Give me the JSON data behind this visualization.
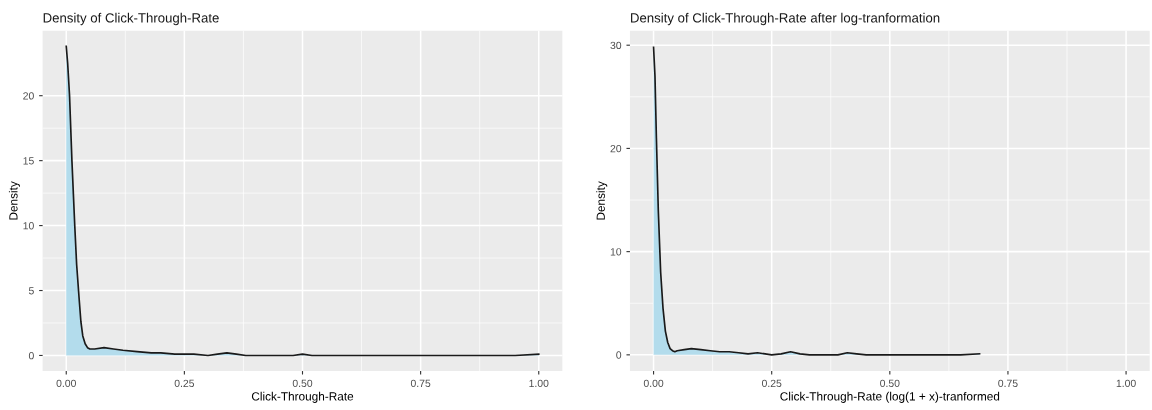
{
  "chart_data": [
    {
      "type": "area",
      "title": "Density of Click-Through-Rate",
      "xlabel": "Click-Through-Rate",
      "ylabel": "Density",
      "xlim": [
        -0.05,
        1.05
      ],
      "ylim": [
        -1.2,
        25
      ],
      "xticks": [
        {
          "value": 0,
          "label": "0.00"
        },
        {
          "value": 0.25,
          "label": "0.25"
        },
        {
          "value": 0.5,
          "label": "0.50"
        },
        {
          "value": 0.75,
          "label": "0.75"
        },
        {
          "value": 1,
          "label": "1.00"
        }
      ],
      "yticks": [
        0,
        5,
        10,
        15,
        20
      ],
      "grid": true,
      "legend": false,
      "series": [
        {
          "color": "#b3dcec",
          "x": [
            0,
            0.003,
            0.007,
            0.012,
            0.018,
            0.022,
            0.027,
            0.031,
            0.035,
            0.04,
            0.045,
            0.05,
            0.06,
            0.08,
            0.1,
            0.12,
            0.15,
            0.18,
            0.2,
            0.23,
            0.25,
            0.27,
            0.3,
            0.32,
            0.34,
            0.36,
            0.38,
            0.42,
            0.46,
            0.48,
            0.5,
            0.52,
            0.55,
            0.6,
            0.7,
            0.8,
            0.9,
            0.95,
            1.0
          ],
          "values": [
            23.8,
            22.5,
            20,
            15,
            10,
            7,
            4.5,
            2.6,
            1.5,
            0.9,
            0.6,
            0.5,
            0.5,
            0.6,
            0.5,
            0.4,
            0.3,
            0.2,
            0.2,
            0.1,
            0.1,
            0.1,
            0.0,
            0.1,
            0.2,
            0.1,
            0.0,
            0.0,
            0.0,
            0.0,
            0.1,
            0.0,
            0.0,
            0.0,
            0.0,
            0.0,
            0.0,
            0.0,
            0.1
          ]
        }
      ]
    },
    {
      "type": "area",
      "title": "Density of Click-Through-Rate after log-tranformation",
      "xlabel": "Click-Through-Rate (log(1 + x)-tranformed",
      "ylabel": "Density",
      "xlim": [
        -0.05,
        1.05
      ],
      "ylim": [
        -1.57,
        31.4
      ],
      "xticks": [
        {
          "value": 0,
          "label": "0.00"
        },
        {
          "value": 0.25,
          "label": "0.25"
        },
        {
          "value": 0.5,
          "label": "0.50"
        },
        {
          "value": 0.75,
          "label": "0.75"
        },
        {
          "value": 1,
          "label": "1.00"
        }
      ],
      "yticks": [
        0,
        10,
        20,
        30
      ],
      "grid": true,
      "legend": false,
      "series": [
        {
          "color": "#b3dcec",
          "x": [
            0,
            0.003,
            0.006,
            0.01,
            0.015,
            0.02,
            0.025,
            0.03,
            0.035,
            0.04,
            0.045,
            0.05,
            0.065,
            0.08,
            0.1,
            0.12,
            0.14,
            0.16,
            0.18,
            0.2,
            0.22,
            0.25,
            0.27,
            0.29,
            0.31,
            0.33,
            0.38,
            0.39,
            0.41,
            0.43,
            0.45,
            0.5,
            0.6,
            0.65,
            0.69
          ],
          "values": [
            29.8,
            27,
            21,
            14,
            8,
            4.5,
            2.3,
            1.2,
            0.6,
            0.4,
            0.3,
            0.4,
            0.5,
            0.6,
            0.5,
            0.4,
            0.3,
            0.3,
            0.2,
            0.1,
            0.2,
            0.0,
            0.1,
            0.3,
            0.1,
            0.0,
            0.0,
            0.0,
            0.2,
            0.1,
            0.0,
            0.0,
            0.0,
            0.0,
            0.1
          ]
        }
      ]
    }
  ]
}
